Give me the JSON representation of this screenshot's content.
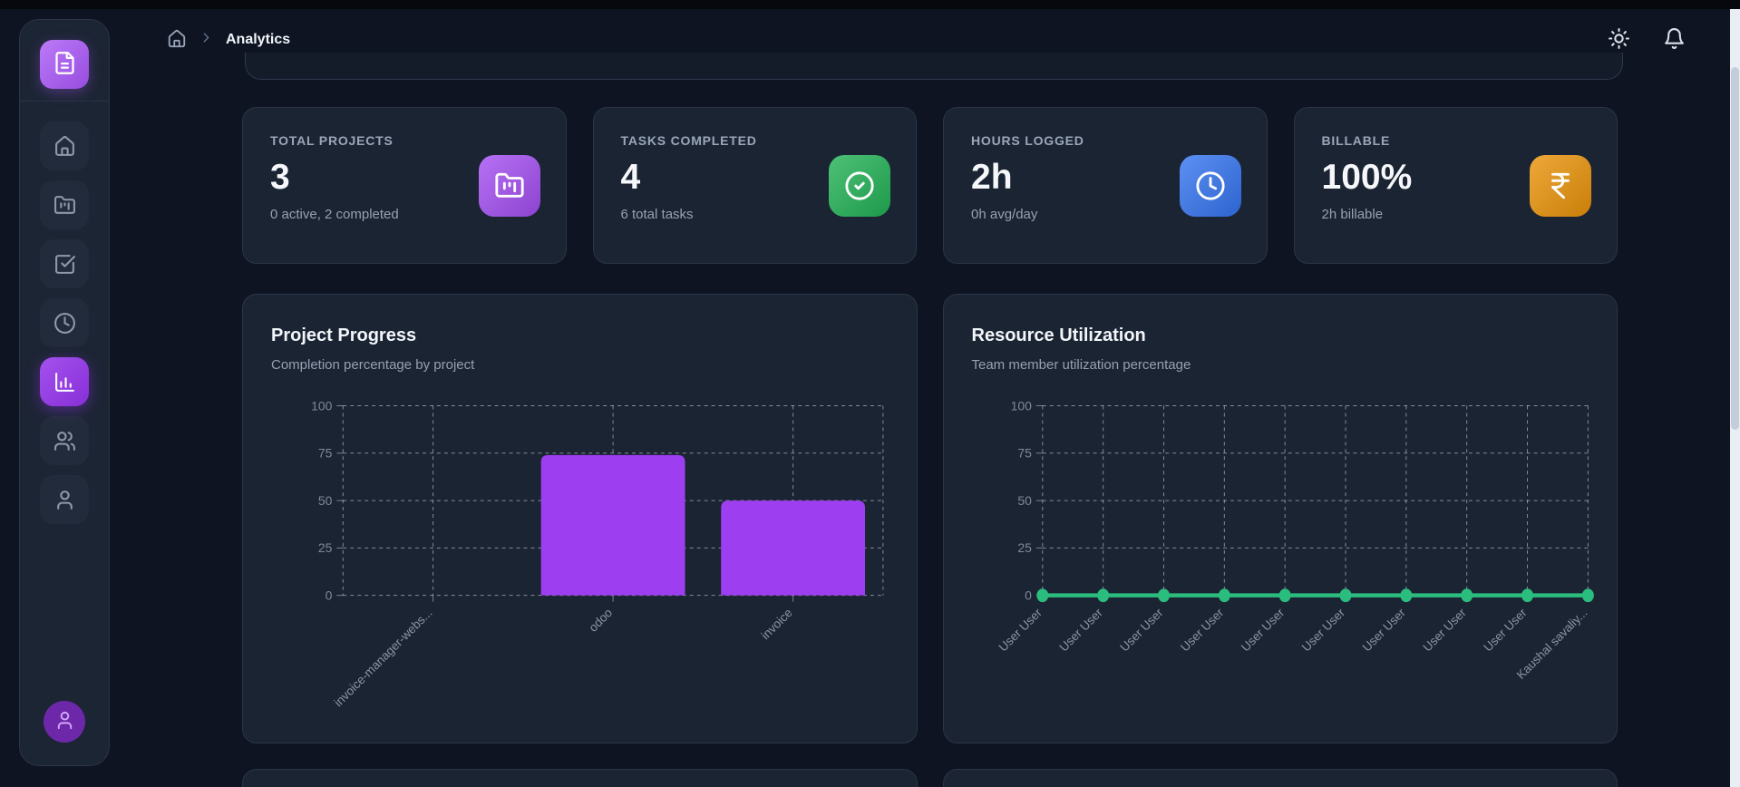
{
  "header": {
    "breadcrumb": {
      "current": "Analytics"
    },
    "actions": [
      {
        "name": "theme-toggle",
        "icon": "sun-icon"
      },
      {
        "name": "notifications",
        "icon": "bell-icon"
      }
    ]
  },
  "sidebar": {
    "logo_icon": "file-text-icon",
    "items": [
      {
        "name": "home",
        "icon": "house-icon",
        "active": false
      },
      {
        "name": "projects",
        "icon": "folder-kanban-icon",
        "active": false
      },
      {
        "name": "tasks",
        "icon": "square-check-icon",
        "active": false
      },
      {
        "name": "time",
        "icon": "clock-icon",
        "active": false
      },
      {
        "name": "analytics",
        "icon": "chart-column-icon",
        "active": true
      },
      {
        "name": "team",
        "icon": "users-icon",
        "active": false
      },
      {
        "name": "profile",
        "icon": "user-icon",
        "active": false
      }
    ],
    "avatar_icon": "user-icon",
    "active_color": "#9333ea",
    "avatar_color": "#6d28a9"
  },
  "stats": [
    {
      "label": "TOTAL PROJECTS",
      "value": "3",
      "subtitle": "0 active, 2 completed",
      "icon": "folder-kanban-icon",
      "color": "#a44ef2"
    },
    {
      "label": "TASKS COMPLETED",
      "value": "4",
      "subtitle": "6 total tasks",
      "icon": "circle-check-icon",
      "color": "#22b256"
    },
    {
      "label": "HOURS LOGGED",
      "value": "2h",
      "subtitle": "0h avg/day",
      "icon": "clock-icon",
      "color": "#3474f0"
    },
    {
      "label": "BILLABLE",
      "value": "100%",
      "subtitle": "2h billable",
      "icon": "indian-rupee-icon",
      "color": "#ea9309"
    }
  ],
  "chart_data": [
    {
      "type": "bar",
      "title": "Project Progress",
      "subtitle": "Completion percentage by project",
      "categories": [
        "invoice-manager-webs...",
        "odoo",
        "invoice"
      ],
      "values": [
        0,
        74,
        50
      ],
      "ylim": [
        0,
        100
      ],
      "yticks": [
        0,
        25,
        50,
        75,
        100
      ],
      "grid": true,
      "legend": false,
      "xlabel": "",
      "ylabel": "",
      "bar_color": "#9d3ef0"
    },
    {
      "type": "line",
      "title": "Resource Utilization",
      "subtitle": "Team member utilization percentage",
      "categories": [
        "User User",
        "User User",
        "User User",
        "User User",
        "User User",
        "User User",
        "User User",
        "User User",
        "User User",
        "Kaushal savaliy..."
      ],
      "values": [
        0,
        0,
        0,
        0,
        0,
        0,
        0,
        0,
        0,
        0
      ],
      "ylim": [
        0,
        100
      ],
      "yticks": [
        0,
        25,
        50,
        75,
        100
      ],
      "grid": true,
      "legend": false,
      "xlabel": "",
      "ylabel": "",
      "line_color": "#2abd7e"
    }
  ],
  "theme": {
    "page_bg": "#0e1422",
    "card_bg": "#1b2433",
    "grid_color": "#d7dee8",
    "tick_color": "#7d8899"
  }
}
